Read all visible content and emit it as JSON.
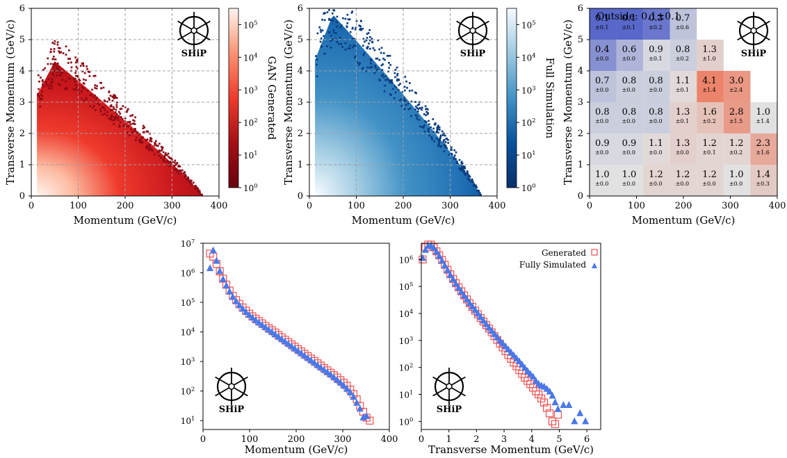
{
  "colors": {
    "gan_red": "#c0141f",
    "sim_blue": "#1f5fa0",
    "generated_marker": "#f05050",
    "simulated_marker": "#4a78e6",
    "ratio_low": "#3b4cc0",
    "ratio_mid": "#dcdcdc",
    "ratio_high": "#e8805a"
  },
  "logo_text": "SHiP",
  "chart_data": [
    {
      "id": "gan_hist2d",
      "type": "heatmap",
      "xlabel": "Momentum (GeV/c)",
      "ylabel": "Transverse Momentum (GeV/c)",
      "xlim": [
        0,
        400
      ],
      "ylim": [
        0,
        6
      ],
      "xticks": [
        "0",
        "100",
        "200",
        "300",
        "400"
      ],
      "yticks": [
        "0",
        "1",
        "2",
        "3",
        "4",
        "5",
        "6"
      ],
      "colorbar_label": "GAN Generated",
      "colorbar_ticks": [
        "10",
        "10",
        "10",
        "10",
        "10",
        "10"
      ],
      "colorbar_exponents": [
        "0",
        "1",
        "2",
        "3",
        "4",
        "5"
      ],
      "colormap": "Reds_r",
      "scale": "log",
      "grid": true,
      "extent": {
        "p_min": 12,
        "p_max": 365,
        "pt_max_at_p50": 4.3
      }
    },
    {
      "id": "sim_hist2d",
      "type": "heatmap",
      "xlabel": "Momentum (GeV/c)",
      "ylabel": "Transverse Momentum (GeV/c)",
      "xlim": [
        0,
        400
      ],
      "ylim": [
        0,
        6
      ],
      "xticks": [
        "0",
        "100",
        "200",
        "300",
        "400"
      ],
      "yticks": [
        "0",
        "1",
        "2",
        "3",
        "4",
        "5",
        "6"
      ],
      "colorbar_label": "Full Simulation",
      "colorbar_ticks": [
        "10",
        "10",
        "10",
        "10",
        "10",
        "10"
      ],
      "colorbar_exponents": [
        "0",
        "1",
        "2",
        "3",
        "4",
        "5"
      ],
      "colormap": "Blues_r",
      "scale": "log",
      "grid": true,
      "extent": {
        "p_min": 12,
        "p_max": 365,
        "pt_max_at_p50": 5.8
      }
    },
    {
      "id": "ratio_grid",
      "type": "table",
      "xlabel": "Momentum (GeV/c)",
      "ylabel": "Transverse Momentum (GeV/c)",
      "xlim": [
        0,
        400
      ],
      "ylim": [
        0,
        6
      ],
      "xticks": [
        "0",
        "100",
        "200",
        "300",
        "400"
      ],
      "yticks": [
        "0",
        "1",
        "2",
        "3",
        "4",
        "5",
        "6"
      ],
      "outside_label": "Outside: 0.1±0.1",
      "bin_width_p": 57.14,
      "bin_height_pt": 1.0,
      "cells": [
        {
          "col": 0,
          "row": 5,
          "value": "0.1",
          "error": "±0.1",
          "ratio": 0.1
        },
        {
          "col": 1,
          "row": 5,
          "value": "0.1",
          "error": "±0.1",
          "ratio": 0.1
        },
        {
          "col": 2,
          "row": 5,
          "value": "0.3",
          "error": "±0.2",
          "ratio": 0.3
        },
        {
          "col": 3,
          "row": 5,
          "value": "0.7",
          "error": "±0.6",
          "ratio": 0.7
        },
        {
          "col": 0,
          "row": 4,
          "value": "0.4",
          "error": "±0.0",
          "ratio": 0.4
        },
        {
          "col": 1,
          "row": 4,
          "value": "0.6",
          "error": "±0.0",
          "ratio": 0.6
        },
        {
          "col": 2,
          "row": 4,
          "value": "0.9",
          "error": "±0.1",
          "ratio": 0.9
        },
        {
          "col": 3,
          "row": 4,
          "value": "0.8",
          "error": "±0.2",
          "ratio": 0.8
        },
        {
          "col": 4,
          "row": 4,
          "value": "1.3",
          "error": "±1.0",
          "ratio": 1.3
        },
        {
          "col": 0,
          "row": 3,
          "value": "0.7",
          "error": "±0.0",
          "ratio": 0.7
        },
        {
          "col": 1,
          "row": 3,
          "value": "0.8",
          "error": "±0.0",
          "ratio": 0.8
        },
        {
          "col": 2,
          "row": 3,
          "value": "0.8",
          "error": "±0.0",
          "ratio": 0.8
        },
        {
          "col": 3,
          "row": 3,
          "value": "1.1",
          "error": "±0.1",
          "ratio": 1.1
        },
        {
          "col": 4,
          "row": 3,
          "value": "4.1",
          "error": "±1.4",
          "ratio": 4.1
        },
        {
          "col": 5,
          "row": 3,
          "value": "3.0",
          "error": "±2.4",
          "ratio": 3.0
        },
        {
          "col": 0,
          "row": 2,
          "value": "0.8",
          "error": "±0.0",
          "ratio": 0.8
        },
        {
          "col": 1,
          "row": 2,
          "value": "0.8",
          "error": "±0.0",
          "ratio": 0.8
        },
        {
          "col": 2,
          "row": 2,
          "value": "0.8",
          "error": "±0.0",
          "ratio": 0.8
        },
        {
          "col": 3,
          "row": 2,
          "value": "1.3",
          "error": "±0.1",
          "ratio": 1.3
        },
        {
          "col": 4,
          "row": 2,
          "value": "1.6",
          "error": "±0.2",
          "ratio": 1.6
        },
        {
          "col": 5,
          "row": 2,
          "value": "2.8",
          "error": "±1.5",
          "ratio": 2.8
        },
        {
          "col": 6,
          "row": 2,
          "value": "1.0",
          "error": "±1.4",
          "ratio": 1.0
        },
        {
          "col": 0,
          "row": 1,
          "value": "0.9",
          "error": "±0.0",
          "ratio": 0.9
        },
        {
          "col": 1,
          "row": 1,
          "value": "0.9",
          "error": "±0.0",
          "ratio": 0.9
        },
        {
          "col": 2,
          "row": 1,
          "value": "1.1",
          "error": "±0.0",
          "ratio": 1.1
        },
        {
          "col": 3,
          "row": 1,
          "value": "1.3",
          "error": "±0.0",
          "ratio": 1.3
        },
        {
          "col": 4,
          "row": 1,
          "value": "1.2",
          "error": "±0.1",
          "ratio": 1.2
        },
        {
          "col": 5,
          "row": 1,
          "value": "1.2",
          "error": "±0.2",
          "ratio": 1.2
        },
        {
          "col": 6,
          "row": 1,
          "value": "2.3",
          "error": "±1.6",
          "ratio": 2.3
        },
        {
          "col": 0,
          "row": 0,
          "value": "1.0",
          "error": "±0.0",
          "ratio": 1.0
        },
        {
          "col": 1,
          "row": 0,
          "value": "1.0",
          "error": "±0.0",
          "ratio": 1.0
        },
        {
          "col": 2,
          "row": 0,
          "value": "1.2",
          "error": "±0.0",
          "ratio": 1.2
        },
        {
          "col": 3,
          "row": 0,
          "value": "1.2",
          "error": "±0.0",
          "ratio": 1.2
        },
        {
          "col": 4,
          "row": 0,
          "value": "1.2",
          "error": "±0.0",
          "ratio": 1.2
        },
        {
          "col": 5,
          "row": 0,
          "value": "1.0",
          "error": "±0.0",
          "ratio": 1.0
        },
        {
          "col": 6,
          "row": 0,
          "value": "1.4",
          "error": "±0.3",
          "ratio": 1.4
        }
      ]
    },
    {
      "id": "momentum_1d",
      "type": "scatter",
      "xlabel": "Momentum (GeV/c)",
      "ylabel": "",
      "xlim": [
        0,
        400
      ],
      "ylim_log10": [
        0.7,
        7
      ],
      "xticks": [
        "0",
        "100",
        "200",
        "300",
        "400"
      ],
      "yticks": [
        "10",
        "10",
        "10",
        "10",
        "10",
        "10",
        "10"
      ],
      "ytick_exponents": [
        "1",
        "2",
        "3",
        "4",
        "5",
        "6",
        "7"
      ],
      "yscale": "log",
      "series": [
        {
          "name": "Generated",
          "marker": "open-square",
          "x": [
            15,
            22,
            29,
            36,
            43,
            50,
            57,
            64,
            71,
            78,
            85,
            92,
            99,
            106,
            113,
            120,
            127,
            134,
            141,
            148,
            155,
            162,
            169,
            176,
            183,
            190,
            197,
            204,
            211,
            218,
            225,
            232,
            239,
            246,
            253,
            260,
            267,
            274,
            281,
            288,
            295,
            302,
            309,
            316,
            323,
            330,
            337,
            344,
            351,
            358
          ],
          "log10y": [
            6.65,
            6.55,
            6.3,
            6.05,
            5.8,
            5.6,
            5.4,
            5.22,
            5.08,
            4.95,
            4.83,
            4.72,
            4.62,
            4.53,
            4.45,
            4.37,
            4.29,
            4.21,
            4.13,
            4.06,
            3.98,
            3.9,
            3.82,
            3.74,
            3.66,
            3.58,
            3.5,
            3.42,
            3.34,
            3.26,
            3.18,
            3.1,
            3.02,
            2.94,
            2.86,
            2.78,
            2.7,
            2.62,
            2.54,
            2.46,
            2.37,
            2.28,
            2.18,
            2.05,
            1.9,
            1.72,
            1.5,
            1.3,
            1.1,
            1.0
          ]
        },
        {
          "name": "Fully Simulated",
          "marker": "filled-triangle",
          "x": [
            15,
            22,
            29,
            36,
            43,
            50,
            57,
            64,
            71,
            78,
            85,
            92,
            99,
            106,
            113,
            120,
            127,
            134,
            141,
            148,
            155,
            162,
            169,
            176,
            183,
            190,
            197,
            204,
            211,
            218,
            225,
            232,
            239,
            246,
            253,
            260,
            267,
            274,
            281,
            288,
            295,
            302,
            309,
            316,
            323,
            330,
            337,
            344,
            351
          ],
          "log10y": [
            6.15,
            6.75,
            6.4,
            6.05,
            5.78,
            5.56,
            5.36,
            5.18,
            5.03,
            4.9,
            4.78,
            4.67,
            4.57,
            4.48,
            4.39,
            4.31,
            4.23,
            4.15,
            4.07,
            3.99,
            3.91,
            3.83,
            3.75,
            3.67,
            3.59,
            3.51,
            3.43,
            3.35,
            3.27,
            3.19,
            3.11,
            3.03,
            2.95,
            2.87,
            2.79,
            2.71,
            2.63,
            2.55,
            2.46,
            2.37,
            2.28,
            2.18,
            2.07,
            1.95,
            1.8,
            1.6,
            1.4,
            1.1,
            1.15
          ]
        }
      ]
    },
    {
      "id": "pt_1d",
      "type": "scatter",
      "xlabel": "Transverse Momentum (GeV/c)",
      "ylabel": "",
      "xlim": [
        0,
        6.5
      ],
      "ylim_log10": [
        -0.3,
        6.6
      ],
      "xticks": [
        "0",
        "1",
        "2",
        "3",
        "4",
        "5",
        "6"
      ],
      "yticks": [
        "10",
        "10",
        "10",
        "10",
        "10",
        "10",
        "10"
      ],
      "ytick_exponents": [
        "0",
        "1",
        "2",
        "3",
        "4",
        "5",
        "6"
      ],
      "yscale": "log",
      "legend": {
        "position": "top-right",
        "entries": [
          "Generated",
          "Fully Simulated"
        ]
      },
      "series": [
        {
          "name": "Generated",
          "marker": "open-square",
          "x": [
            0.05,
            0.15,
            0.25,
            0.35,
            0.45,
            0.55,
            0.65,
            0.75,
            0.85,
            0.95,
            1.05,
            1.15,
            1.25,
            1.35,
            1.45,
            1.55,
            1.65,
            1.75,
            1.85,
            1.95,
            2.05,
            2.15,
            2.25,
            2.35,
            2.45,
            2.55,
            2.65,
            2.75,
            2.85,
            2.95,
            3.05,
            3.15,
            3.25,
            3.35,
            3.45,
            3.55,
            3.65,
            3.75,
            3.85,
            3.95,
            4.05,
            4.15,
            4.25,
            4.35,
            4.45,
            4.55,
            4.65,
            4.75,
            4.85,
            4.95
          ],
          "log10y": [
            6.0,
            6.45,
            6.55,
            6.55,
            6.45,
            6.3,
            6.15,
            5.98,
            5.8,
            5.62,
            5.45,
            5.28,
            5.12,
            4.97,
            4.82,
            4.67,
            4.52,
            4.38,
            4.24,
            4.1,
            3.97,
            3.83,
            3.7,
            3.57,
            3.44,
            3.3,
            3.16,
            3.02,
            2.88,
            2.74,
            2.6,
            2.46,
            2.32,
            2.18,
            2.04,
            1.9,
            1.76,
            1.62,
            1.5,
            1.38,
            1.25,
            1.12,
            1.0,
            0.85,
            0.7,
            0.5,
            0.3,
            0.0,
            -0.1,
            0.25
          ]
        },
        {
          "name": "Fully Simulated",
          "marker": "filled-triangle",
          "x": [
            0.05,
            0.15,
            0.25,
            0.35,
            0.45,
            0.55,
            0.65,
            0.75,
            0.85,
            0.95,
            1.05,
            1.15,
            1.25,
            1.35,
            1.45,
            1.55,
            1.65,
            1.75,
            1.85,
            1.95,
            2.05,
            2.15,
            2.25,
            2.35,
            2.45,
            2.55,
            2.65,
            2.75,
            2.85,
            2.95,
            3.05,
            3.15,
            3.25,
            3.35,
            3.45,
            3.55,
            3.65,
            3.75,
            3.85,
            3.95,
            4.05,
            4.15,
            4.25,
            4.35,
            4.45,
            4.55,
            4.65,
            4.75,
            4.85,
            4.95,
            5.15,
            5.35,
            5.55,
            5.75,
            5.95
          ],
          "log10y": [
            6.05,
            6.35,
            6.5,
            6.5,
            6.42,
            6.28,
            6.12,
            5.95,
            5.77,
            5.6,
            5.42,
            5.26,
            5.1,
            4.95,
            4.8,
            4.66,
            4.52,
            4.38,
            4.25,
            4.12,
            3.99,
            3.86,
            3.73,
            3.6,
            3.47,
            3.35,
            3.23,
            3.11,
            2.99,
            2.88,
            2.77,
            2.66,
            2.55,
            2.44,
            2.33,
            2.22,
            2.1,
            1.98,
            1.86,
            1.75,
            1.65,
            1.5,
            1.38,
            1.32,
            1.28,
            1.2,
            1.1,
            0.95,
            0.7,
            0.45,
            0.6,
            0.6,
            0.0,
            0.3,
            0.0
          ]
        }
      ]
    }
  ]
}
